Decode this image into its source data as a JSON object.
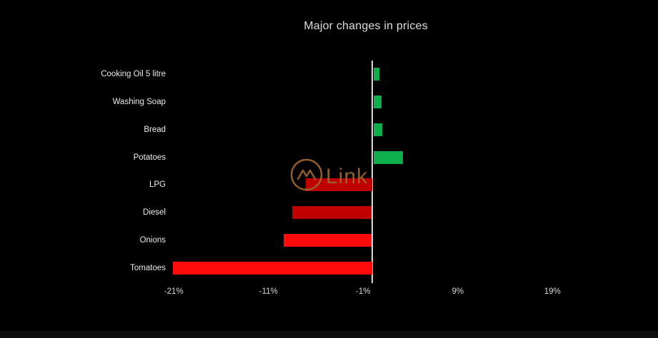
{
  "title": "Major changes in prices",
  "watermark": {
    "text": "Link",
    "color": "#9d6730"
  },
  "colors": {
    "background": "#000000",
    "axis_line": "#d9d9d9",
    "positive_green": "#0fae4d",
    "negative_dark_red": "#c00000",
    "negative_bright_red": "#ff0b0b"
  },
  "chart_data": {
    "type": "bar",
    "orientation": "horizontal",
    "title": "Major changes in prices",
    "categories": [
      "Cooking Oil 5 litre",
      "Washing Soap",
      "Bread",
      "Potatoes",
      "LPG",
      "Diesel",
      "Onions",
      "Tomatoes"
    ],
    "values": [
      0.6,
      0.8,
      0.9,
      3.1,
      -7.0,
      -8.4,
      -9.3,
      -21.0
    ],
    "unit": "%",
    "bar_colors": [
      "#0fae4d",
      "#0fae4d",
      "#0fae4d",
      "#0fae4d",
      "#c00000",
      "#c00000",
      "#ff0b0b",
      "#ff0b0b"
    ],
    "x_ticks": [
      "-21%",
      "-11%",
      "-1%",
      "9%",
      "19%"
    ],
    "x_tick_values": [
      -21,
      -11,
      -1,
      9,
      19
    ],
    "xlim": [
      -23,
      21
    ],
    "grid": false,
    "zero_axis": true,
    "legend": "none"
  }
}
